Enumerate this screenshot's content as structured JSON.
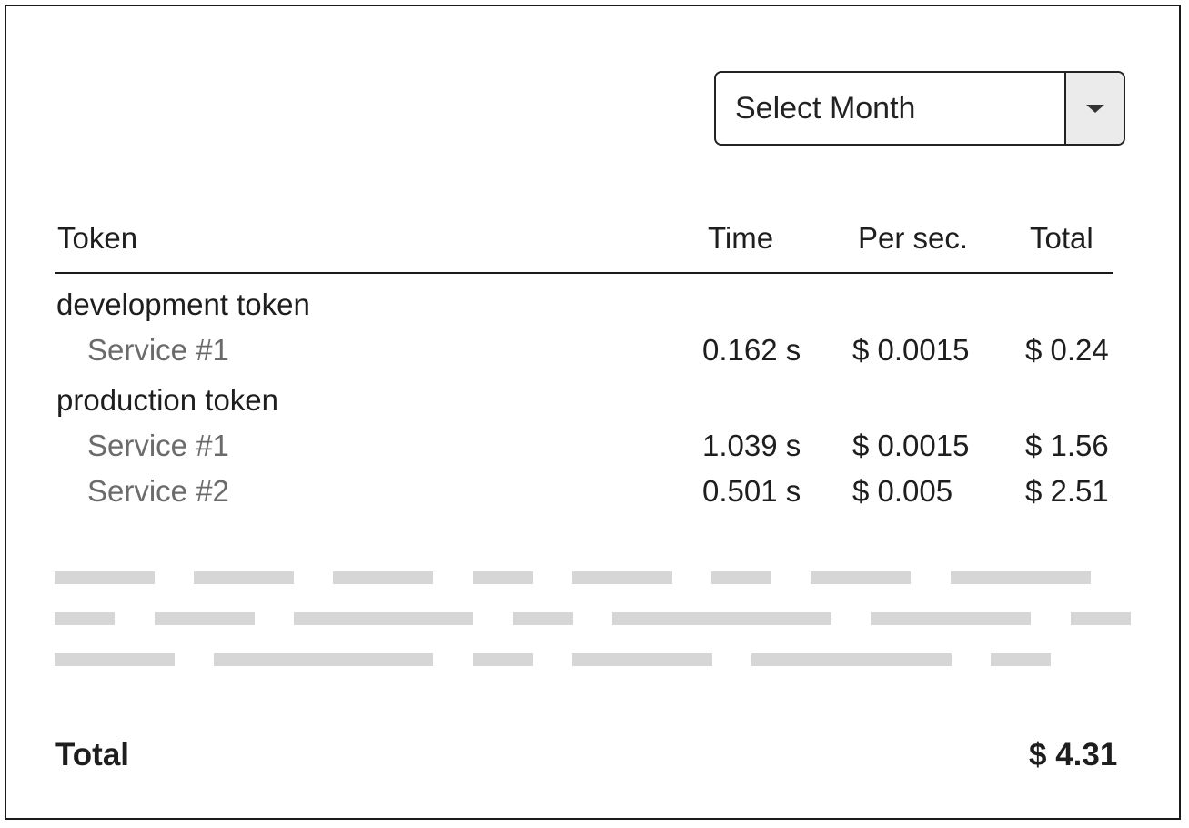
{
  "month_select": {
    "label": "Select Month"
  },
  "table": {
    "headers": {
      "token": "Token",
      "time": "Time",
      "per_sec": "Per sec.",
      "total": "Total"
    },
    "groups": [
      {
        "name": "development token",
        "services": [
          {
            "name": "Service #1",
            "time": "0.162 s",
            "per_sec": "$ 0.0015",
            "total": "$ 0.24"
          }
        ]
      },
      {
        "name": "production token",
        "services": [
          {
            "name": "Service #1",
            "time": "1.039 s",
            "per_sec": "$ 0.0015",
            "total": "$ 1.56"
          },
          {
            "name": "Service #2",
            "time": "0.501 s",
            "per_sec": "$ 0.005",
            "total": "$ 2.51"
          }
        ]
      }
    ]
  },
  "summary": {
    "label": "Total",
    "value": "$ 4.31"
  }
}
